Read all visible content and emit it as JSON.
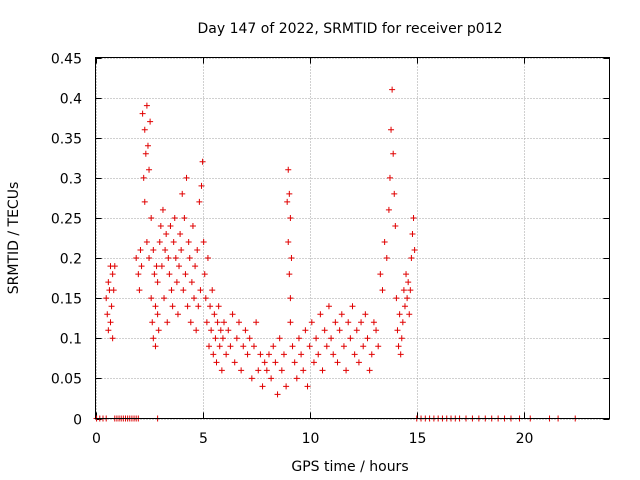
{
  "chart_data": {
    "type": "scatter",
    "title": "Day 147 of 2022, SRMTID for receiver p012",
    "xlabel": "GPS time / hours",
    "ylabel": "SRMTID / TECUs",
    "xlim": [
      0,
      24
    ],
    "ylim": [
      0,
      0.45
    ],
    "xticks": [
      0,
      5,
      10,
      15,
      20
    ],
    "yticks": [
      0,
      0.05,
      0.1,
      0.15,
      0.2,
      0.25,
      0.3,
      0.35,
      0.4,
      0.45
    ],
    "ytick_labels": [
      "0",
      "0.05",
      "0.1",
      "0.15",
      "0.2",
      "0.25",
      "0.3",
      "0.35",
      "0.4",
      "0.45"
    ],
    "grid": true,
    "marker": "+",
    "color": "#e00000",
    "series": [
      {
        "name": "p012",
        "x": [
          0.05,
          0.2,
          0.35,
          0.5,
          0.9,
          1.0,
          1.1,
          1.2,
          1.3,
          1.4,
          1.5,
          1.6,
          1.7,
          1.8,
          1.9,
          2.0,
          0.5,
          0.55,
          0.6,
          0.6,
          0.65,
          0.7,
          0.7,
          0.75,
          0.8,
          0.8,
          0.85,
          0.9,
          1.9,
          2.0,
          2.05,
          2.1,
          2.15,
          2.2,
          2.25,
          2.3,
          2.3,
          2.35,
          2.4,
          2.4,
          2.45,
          2.5,
          2.5,
          2.55,
          2.6,
          2.6,
          2.65,
          2.7,
          2.7,
          2.75,
          2.8,
          2.8,
          2.85,
          2.9,
          2.9,
          2.95,
          3.0,
          3.05,
          3.1,
          3.15,
          3.2,
          3.25,
          3.3,
          3.35,
          3.4,
          3.45,
          3.5,
          3.55,
          3.6,
          3.65,
          3.7,
          3.75,
          3.8,
          3.85,
          3.9,
          3.95,
          4.0,
          4.05,
          4.1,
          4.15,
          4.2,
          4.25,
          4.3,
          4.35,
          4.4,
          4.45,
          4.5,
          4.55,
          4.6,
          4.65,
          4.7,
          4.75,
          4.8,
          4.85,
          4.9,
          4.95,
          5.0,
          5.05,
          5.1,
          5.15,
          5.2,
          5.25,
          5.3,
          5.35,
          5.4,
          5.45,
          5.5,
          5.55,
          5.6,
          5.65,
          5.7,
          5.75,
          5.8,
          5.85,
          5.9,
          5.95,
          6.0,
          6.1,
          6.2,
          6.3,
          6.4,
          6.5,
          6.6,
          6.7,
          6.8,
          6.9,
          7.0,
          7.1,
          7.2,
          7.3,
          7.4,
          7.5,
          7.6,
          7.7,
          7.8,
          7.9,
          8.0,
          8.1,
          8.2,
          8.3,
          8.4,
          8.5,
          8.6,
          8.7,
          8.8,
          8.9,
          8.95,
          9.0,
          9.0,
          9.05,
          9.05,
          9.1,
          9.1,
          9.1,
          9.15,
          9.2,
          9.3,
          9.4,
          9.5,
          9.6,
          9.7,
          9.8,
          9.9,
          10.0,
          10.1,
          10.2,
          10.3,
          10.4,
          10.5,
          10.6,
          10.7,
          10.8,
          10.9,
          11.0,
          11.1,
          11.2,
          11.3,
          11.4,
          11.5,
          11.6,
          11.7,
          11.8,
          11.9,
          12.0,
          12.1,
          12.2,
          12.3,
          12.4,
          12.5,
          12.6,
          12.7,
          12.8,
          12.9,
          13.0,
          13.1,
          13.2,
          13.3,
          13.4,
          13.5,
          13.6,
          13.7,
          13.75,
          13.8,
          13.85,
          13.9,
          13.95,
          14.0,
          14.05,
          14.1,
          14.15,
          14.2,
          14.25,
          14.3,
          14.35,
          14.4,
          14.45,
          14.5,
          14.55,
          14.6,
          14.65,
          14.7,
          14.75,
          14.8,
          14.85,
          14.9,
          15.0,
          15.2,
          15.4,
          15.6,
          15.8,
          16.0,
          16.2,
          16.4,
          16.6,
          16.8,
          17.0,
          17.3,
          17.6,
          17.9,
          18.2,
          18.5,
          18.8,
          19.1,
          19.4,
          19.8,
          20.3,
          21.2,
          21.6,
          22.4,
          2.9
        ],
        "y": [
          0,
          0,
          0,
          0,
          0,
          0,
          0,
          0,
          0,
          0,
          0,
          0,
          0,
          0,
          0,
          0,
          0.15,
          0.13,
          0.17,
          0.11,
          0.16,
          0.19,
          0.12,
          0.14,
          0.18,
          0.1,
          0.16,
          0.19,
          0.2,
          0.18,
          0.16,
          0.21,
          0.19,
          0.38,
          0.3,
          0.27,
          0.36,
          0.33,
          0.39,
          0.22,
          0.34,
          0.31,
          0.2,
          0.37,
          0.15,
          0.25,
          0.12,
          0.21,
          0.1,
          0.18,
          0.14,
          0.09,
          0.19,
          0.13,
          0.17,
          0.11,
          0.22,
          0.24,
          0.19,
          0.26,
          0.15,
          0.21,
          0.23,
          0.12,
          0.2,
          0.18,
          0.24,
          0.16,
          0.14,
          0.22,
          0.25,
          0.2,
          0.17,
          0.13,
          0.19,
          0.23,
          0.21,
          0.28,
          0.16,
          0.25,
          0.18,
          0.3,
          0.14,
          0.22,
          0.2,
          0.12,
          0.17,
          0.24,
          0.15,
          0.19,
          0.11,
          0.21,
          0.14,
          0.27,
          0.16,
          0.29,
          0.32,
          0.22,
          0.18,
          0.15,
          0.12,
          0.2,
          0.09,
          0.14,
          0.11,
          0.16,
          0.08,
          0.13,
          0.1,
          0.07,
          0.12,
          0.14,
          0.09,
          0.11,
          0.06,
          0.1,
          0.12,
          0.08,
          0.11,
          0.09,
          0.13,
          0.07,
          0.1,
          0.12,
          0.06,
          0.09,
          0.11,
          0.08,
          0.1,
          0.05,
          0.09,
          0.12,
          0.06,
          0.08,
          0.04,
          0.07,
          0.06,
          0.08,
          0.05,
          0.09,
          0.07,
          0.03,
          0.1,
          0.06,
          0.08,
          0.04,
          0.27,
          0.31,
          0.22,
          0.28,
          0.18,
          0.25,
          0.15,
          0.12,
          0.2,
          0.09,
          0.07,
          0.05,
          0.1,
          0.08,
          0.06,
          0.11,
          0.04,
          0.09,
          0.12,
          0.07,
          0.1,
          0.08,
          0.13,
          0.06,
          0.11,
          0.09,
          0.14,
          0.1,
          0.08,
          0.12,
          0.07,
          0.11,
          0.13,
          0.09,
          0.06,
          0.12,
          0.1,
          0.14,
          0.08,
          0.11,
          0.07,
          0.12,
          0.09,
          0.13,
          0.1,
          0.06,
          0.08,
          0.12,
          0.11,
          0.09,
          0.18,
          0.16,
          0.22,
          0.2,
          0.26,
          0.3,
          0.36,
          0.41,
          0.33,
          0.28,
          0.24,
          0.15,
          0.11,
          0.09,
          0.13,
          0.08,
          0.1,
          0.12,
          0.16,
          0.14,
          0.18,
          0.15,
          0.17,
          0.13,
          0.16,
          0.2,
          0.23,
          0.25,
          0.21,
          0,
          0,
          0,
          0,
          0,
          0,
          0,
          0,
          0,
          0,
          0,
          0,
          0,
          0,
          0,
          0,
          0,
          0,
          0,
          0,
          0,
          0,
          0,
          0,
          0
        ]
      }
    ]
  }
}
